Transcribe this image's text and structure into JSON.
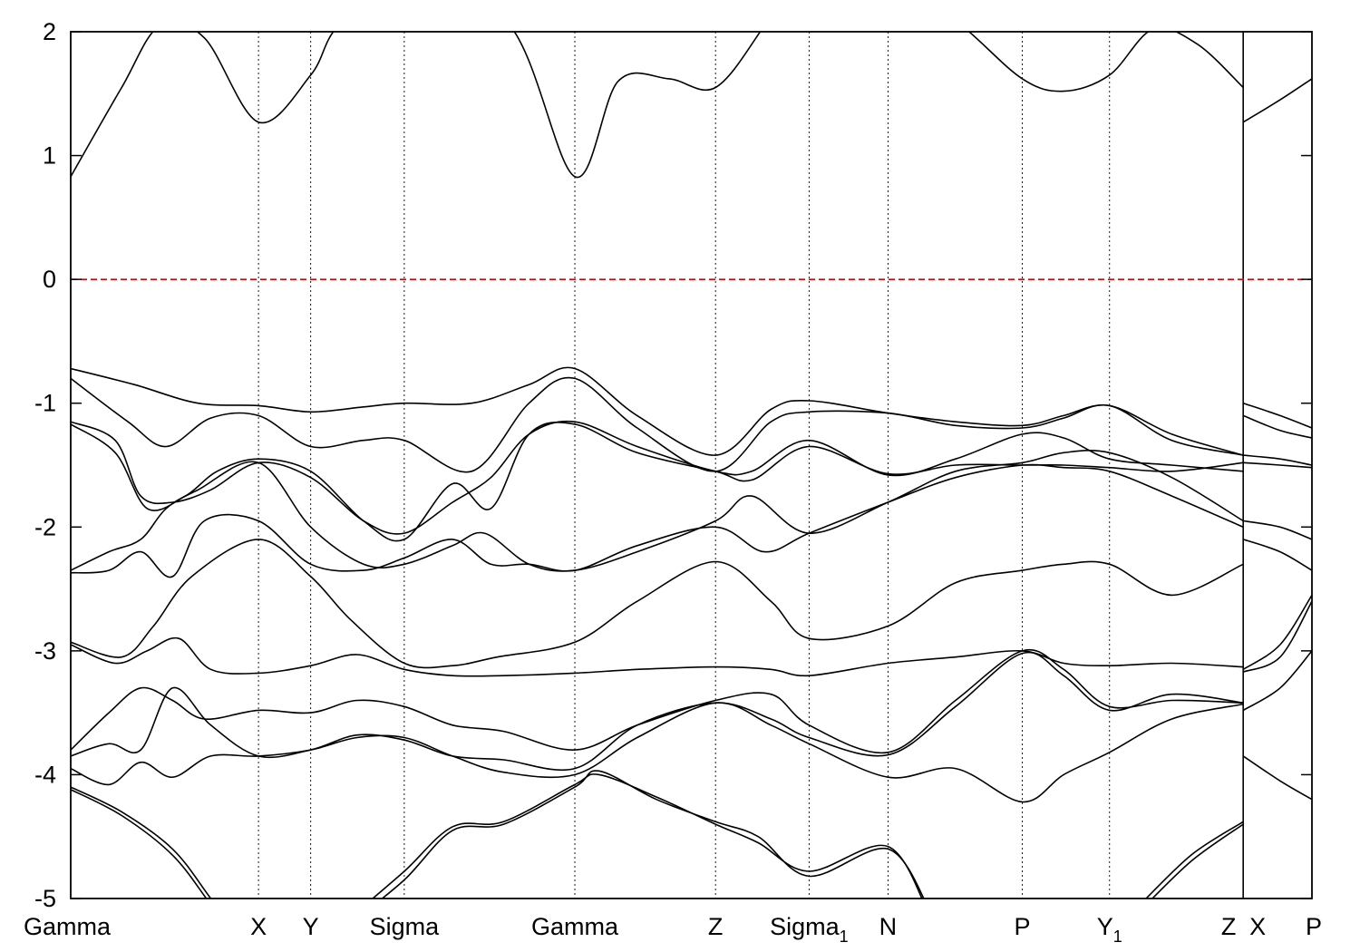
{
  "chart_data": {
    "type": "line",
    "title": "",
    "xlabel": "",
    "ylabel": "",
    "ylim": [
      -5,
      2
    ],
    "yticks": [
      -5,
      -4,
      -3,
      -2,
      -1,
      0,
      1,
      2
    ],
    "xlim": [
      0,
      19.5
    ],
    "grid": "vertical dotted lines at high-symmetry points",
    "legend": "none",
    "colors": {
      "bands": "#000000",
      "fermi_level": "#e00000",
      "axis": "#000000",
      "vline": "#000000"
    },
    "fermi_level": 0,
    "high_symmetry_points": [
      {
        "x": 0.0,
        "label": "Gamma",
        "sub": ""
      },
      {
        "x": 2.95,
        "label": "X",
        "sub": ""
      },
      {
        "x": 3.77,
        "label": "Y",
        "sub": ""
      },
      {
        "x": 5.24,
        "label": "Sigma",
        "sub": ""
      },
      {
        "x": 7.92,
        "label": "Gamma",
        "sub": ""
      },
      {
        "x": 10.13,
        "label": "Z",
        "sub": ""
      },
      {
        "x": 11.6,
        "label": "Sigma",
        "sub": "1"
      },
      {
        "x": 12.84,
        "label": "N",
        "sub": ""
      },
      {
        "x": 14.95,
        "label": "P",
        "sub": ""
      },
      {
        "x": 16.32,
        "label": "Y",
        "sub": "1"
      },
      {
        "x": 18.42,
        "label": "Z",
        "sub": ""
      },
      {
        "x": 18.42,
        "label": "X",
        "sub": ""
      },
      {
        "x": 19.5,
        "label": "P",
        "sub": ""
      }
    ],
    "discontinuity_x": 18.42,
    "series": [
      {
        "x": [
          0,
          0.8,
          1.4,
          2.1,
          2.95,
          3.77,
          4.2,
          5.24,
          6.9,
          7.92,
          8.6,
          9.4,
          10.13,
          10.9,
          11.6,
          12.84,
          14.0,
          14.95,
          15.6,
          16.32,
          17.0,
          17.7,
          18.42
        ],
        "y": [
          0.83,
          1.55,
          2.05,
          1.95,
          1.27,
          1.65,
          2.05,
          2.5,
          2.05,
          0.83,
          1.6,
          1.62,
          1.55,
          2.05,
          2.6,
          2.5,
          2.05,
          1.62,
          1.52,
          1.65,
          2.02,
          1.9,
          1.55
        ]
      },
      {
        "x": [
          18.42,
          19.0,
          19.5
        ],
        "y": [
          1.27,
          1.45,
          1.62
        ]
      },
      {
        "x": [
          0,
          1.0,
          2.0,
          2.95,
          3.77,
          4.6,
          5.24,
          6.3,
          7.2,
          7.92,
          8.9,
          10.13,
          11.0,
          11.6,
          12.84,
          13.9,
          14.95,
          15.6,
          16.32,
          17.3,
          18.42
        ],
        "y": [
          -0.72,
          -0.85,
          -1.0,
          -1.02,
          -1.07,
          -1.03,
          -1.0,
          -1.0,
          -0.85,
          -0.72,
          -1.1,
          -1.42,
          -1.05,
          -0.98,
          -1.08,
          -1.15,
          -1.18,
          -1.1,
          -1.02,
          -1.25,
          -1.42
        ]
      },
      {
        "x": [
          18.42,
          19.0,
          19.5
        ],
        "y": [
          -1.0,
          -1.1,
          -1.2
        ]
      },
      {
        "x": [
          0,
          0.9,
          1.5,
          2.2,
          2.95,
          3.77,
          4.6,
          5.24,
          6.3,
          7.2,
          7.92,
          8.9,
          10.13,
          11.0,
          11.6,
          12.84,
          13.9,
          14.95,
          15.6,
          16.32,
          17.3,
          18.42
        ],
        "y": [
          -0.8,
          -1.15,
          -1.35,
          -1.12,
          -1.1,
          -1.35,
          -1.3,
          -1.3,
          -1.55,
          -1.0,
          -0.8,
          -1.2,
          -1.55,
          -1.15,
          -1.07,
          -1.08,
          -1.18,
          -1.2,
          -1.12,
          -1.02,
          -1.3,
          -1.42
        ]
      },
      {
        "x": [
          18.42,
          19.0,
          19.5
        ],
        "y": [
          -1.1,
          -1.22,
          -1.28
        ]
      },
      {
        "x": [
          0,
          0.7,
          1.1,
          1.6,
          2.2,
          2.95,
          3.77,
          4.6,
          5.24,
          6.0,
          6.6,
          7.2,
          7.92,
          8.9,
          10.13,
          10.7,
          11.6,
          12.84,
          13.9,
          14.95,
          15.6,
          16.32,
          17.3,
          18.42
        ],
        "y": [
          -1.15,
          -1.3,
          -1.75,
          -1.8,
          -1.7,
          -1.48,
          -1.6,
          -1.95,
          -2.05,
          -1.8,
          -1.6,
          -1.25,
          -1.15,
          -1.35,
          -1.55,
          -1.55,
          -1.3,
          -1.58,
          -1.45,
          -1.25,
          -1.28,
          -1.45,
          -1.5,
          -1.55
        ]
      },
      {
        "x": [
          18.42,
          19.0,
          19.5
        ],
        "y": [
          -1.42,
          -1.45,
          -1.5
        ]
      },
      {
        "x": [
          0,
          0.7,
          1.2,
          1.8,
          2.3,
          2.95,
          3.77,
          4.6,
          5.24,
          6.0,
          6.6,
          7.2,
          7.92,
          8.9,
          10.13,
          10.7,
          11.6,
          12.84,
          13.9,
          14.95,
          15.6,
          16.32,
          17.3,
          18.42
        ],
        "y": [
          -1.17,
          -1.4,
          -1.85,
          -1.75,
          -1.55,
          -1.45,
          -1.55,
          -1.95,
          -2.1,
          -1.65,
          -1.85,
          -1.25,
          -1.17,
          -1.4,
          -1.55,
          -1.62,
          -1.35,
          -1.57,
          -1.5,
          -1.5,
          -1.5,
          -1.52,
          -1.55,
          -1.48
        ]
      },
      {
        "x": [
          18.42,
          19.0,
          19.5
        ],
        "y": [
          -1.48,
          -1.5,
          -1.52
        ]
      },
      {
        "x": [
          0,
          0.6,
          1.1,
          1.5,
          2.0,
          2.95,
          3.77,
          4.6,
          5.24,
          6.0,
          6.5,
          7.2,
          7.92,
          8.9,
          10.13,
          10.7,
          11.6,
          12.84,
          13.9,
          14.95,
          15.6,
          16.32,
          17.3,
          18.42
        ],
        "y": [
          -2.35,
          -2.2,
          -2.1,
          -1.85,
          -1.7,
          -1.48,
          -2.0,
          -2.3,
          -2.3,
          -2.15,
          -2.05,
          -2.3,
          -2.35,
          -2.2,
          -1.95,
          -1.75,
          -2.05,
          -1.8,
          -1.55,
          -1.48,
          -1.4,
          -1.4,
          -1.6,
          -1.95
        ]
      },
      {
        "x": [
          18.42,
          19.0,
          19.5
        ],
        "y": [
          -1.95,
          -2.0,
          -2.1
        ]
      },
      {
        "x": [
          0,
          0.6,
          1.1,
          1.6,
          2.1,
          2.95,
          3.77,
          4.6,
          5.24,
          6.0,
          6.6,
          7.2,
          7.92,
          8.9,
          10.13,
          10.9,
          11.6,
          12.84,
          13.9,
          14.95,
          15.6,
          16.32,
          17.3,
          18.42
        ],
        "y": [
          -2.37,
          -2.35,
          -2.2,
          -2.4,
          -1.95,
          -1.95,
          -2.3,
          -2.35,
          -2.25,
          -2.1,
          -2.3,
          -2.3,
          -2.35,
          -2.15,
          -2.0,
          -2.2,
          -2.05,
          -1.8,
          -1.6,
          -1.5,
          -1.52,
          -1.55,
          -1.75,
          -2.0
        ]
      },
      {
        "x": [
          18.42,
          19.0,
          19.5
        ],
        "y": [
          -2.1,
          -2.2,
          -2.35
        ]
      },
      {
        "x": [
          0,
          0.8,
          1.3,
          1.9,
          2.95,
          3.77,
          4.4,
          5.24,
          6.0,
          6.7,
          7.92,
          8.9,
          10.13,
          11.0,
          11.6,
          12.84,
          13.9,
          14.95,
          15.6,
          16.32,
          17.3,
          18.42
        ],
        "y": [
          -2.93,
          -3.05,
          -2.8,
          -2.4,
          -2.1,
          -2.4,
          -2.75,
          -3.1,
          -3.12,
          -3.05,
          -2.93,
          -2.6,
          -2.28,
          -2.6,
          -2.9,
          -2.8,
          -2.45,
          -2.35,
          -2.3,
          -2.3,
          -2.55,
          -2.3
        ]
      },
      {
        "x": [
          18.42,
          19.0,
          19.5
        ],
        "y": [
          -3.15,
          -2.95,
          -2.55
        ]
      },
      {
        "x": [
          0,
          0.7,
          1.2,
          1.7,
          2.2,
          2.95,
          3.77,
          4.5,
          5.24,
          6.0,
          6.8,
          7.92,
          8.9,
          10.13,
          11.0,
          11.6,
          12.84,
          13.9,
          14.95,
          15.6,
          16.32,
          17.3,
          18.42
        ],
        "y": [
          -2.95,
          -3.1,
          -3.0,
          -2.9,
          -3.15,
          -3.18,
          -3.12,
          -3.03,
          -3.15,
          -3.2,
          -3.2,
          -3.18,
          -3.15,
          -3.13,
          -3.15,
          -3.2,
          -3.1,
          -3.05,
          -3.0,
          -3.1,
          -3.12,
          -3.1,
          -3.13
        ]
      },
      {
        "x": [
          18.42,
          19.0,
          19.5
        ],
        "y": [
          -3.17,
          -3.05,
          -2.6
        ]
      },
      {
        "x": [
          0,
          0.6,
          1.1,
          1.6,
          2.1,
          2.95,
          3.77,
          4.5,
          5.24,
          6.0,
          6.8,
          7.92,
          8.9,
          10.13,
          11.0,
          11.6,
          12.84,
          13.9,
          14.95,
          15.6,
          16.32,
          17.3,
          18.42
        ],
        "y": [
          -3.8,
          -3.5,
          -3.3,
          -3.4,
          -3.55,
          -3.48,
          -3.5,
          -3.4,
          -3.45,
          -3.6,
          -3.65,
          -3.8,
          -3.6,
          -3.4,
          -3.35,
          -3.6,
          -3.82,
          -3.4,
          -3.0,
          -3.15,
          -3.45,
          -3.4,
          -3.42
        ]
      },
      {
        "x": [
          18.42,
          19.0,
          19.5
        ],
        "y": [
          -3.48,
          -3.3,
          -3.0
        ]
      },
      {
        "x": [
          0,
          0.6,
          1.1,
          1.6,
          2.2,
          2.95,
          3.77,
          4.5,
          5.24,
          6.0,
          6.8,
          7.92,
          8.9,
          10.13,
          11.0,
          11.6,
          12.84,
          13.9,
          14.95,
          15.6,
          16.32,
          17.3,
          18.42
        ],
        "y": [
          -3.85,
          -3.75,
          -3.8,
          -3.3,
          -3.6,
          -3.85,
          -3.8,
          -3.68,
          -3.72,
          -3.85,
          -3.88,
          -3.95,
          -3.6,
          -3.42,
          -3.55,
          -3.7,
          -3.84,
          -3.45,
          -3.02,
          -3.2,
          -3.48,
          -3.35,
          -3.42
        ]
      },
      {
        "x": [
          18.42,
          19.0,
          19.5
        ],
        "y": [
          -3.85,
          -4.05,
          -4.2
        ]
      },
      {
        "x": [
          0,
          0.6,
          1.1,
          1.6,
          2.2,
          2.95,
          3.77,
          4.5,
          5.24,
          6.0,
          6.8,
          7.92,
          8.9,
          10.13,
          11.0,
          11.6,
          12.84,
          13.9,
          14.95,
          15.6,
          16.32,
          17.3,
          18.42
        ],
        "y": [
          -3.95,
          -4.08,
          -3.9,
          -4.02,
          -3.85,
          -3.85,
          -3.8,
          -3.7,
          -3.7,
          -3.85,
          -3.98,
          -4.0,
          -3.7,
          -3.42,
          -3.6,
          -3.75,
          -4.02,
          -3.95,
          -4.22,
          -4.0,
          -3.82,
          -3.55,
          -3.43
        ]
      },
      {
        "x": [
          0,
          0.8,
          1.6,
          2.2,
          2.9
        ],
        "y": [
          -4.1,
          -4.3,
          -4.6,
          -5.0,
          -5.5
        ]
      },
      {
        "x": [
          0,
          0.8,
          1.6,
          2.2,
          2.9
        ],
        "y": [
          -4.12,
          -4.33,
          -4.65,
          -5.05,
          -5.55
        ]
      },
      {
        "x": [
          4.4,
          5.24,
          6.0,
          6.8,
          7.92,
          8.3,
          9.2,
          10.13,
          10.8,
          11.6,
          12.84,
          13.5
        ],
        "y": [
          -5.2,
          -4.85,
          -4.45,
          -4.4,
          -4.1,
          -3.97,
          -4.2,
          -4.38,
          -4.5,
          -4.82,
          -4.6,
          -5.1
        ]
      },
      {
        "x": [
          4.4,
          5.24,
          6.0,
          6.8,
          7.92,
          8.3,
          9.2,
          10.13,
          10.8,
          11.6,
          12.84,
          13.5
        ],
        "y": [
          -5.15,
          -4.78,
          -4.42,
          -4.38,
          -4.08,
          -4.0,
          -4.18,
          -4.4,
          -4.55,
          -4.78,
          -4.58,
          -5.15
        ]
      },
      {
        "x": [
          16.8,
          17.6,
          18.42
        ],
        "y": [
          -5.05,
          -4.65,
          -4.38
        ]
      },
      {
        "x": [
          16.8,
          17.6,
          18.42
        ],
        "y": [
          -5.1,
          -4.7,
          -4.4
        ]
      }
    ]
  }
}
